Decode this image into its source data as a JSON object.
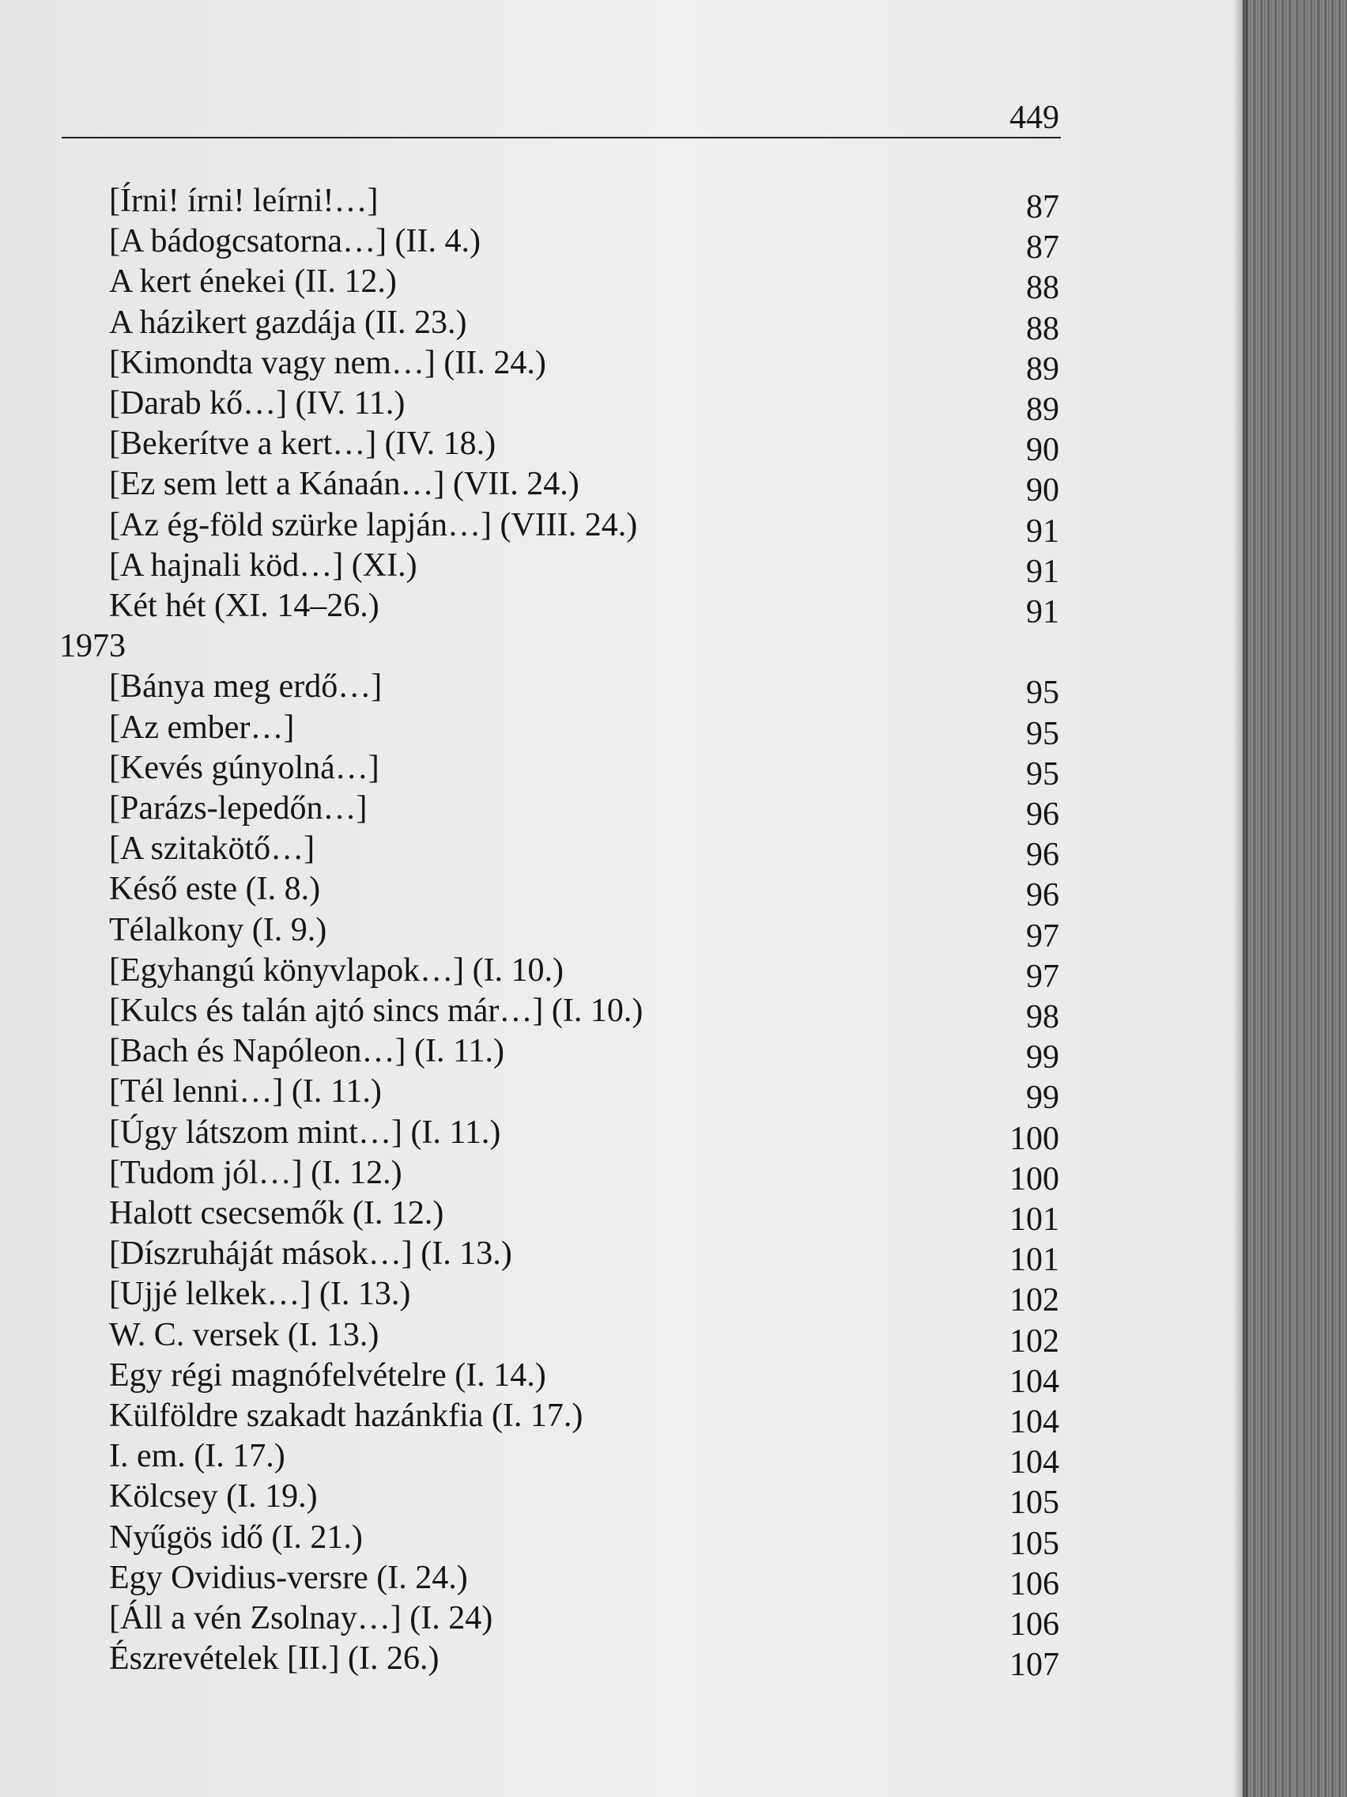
{
  "page_number": "449",
  "entries": [
    {
      "title": "[Írni! írni! leírni!…]",
      "page": "87"
    },
    {
      "title": "[A bádogcsatorna…] (II. 4.)",
      "page": "87"
    },
    {
      "title": "A kert énekei (II. 12.)",
      "page": "88"
    },
    {
      "title": "A házikert gazdája (II. 23.)",
      "page": "88"
    },
    {
      "title": "[Kimondta vagy nem…] (II. 24.)",
      "page": "89"
    },
    {
      "title": "[Darab kő…] (IV. 11.)",
      "page": "89"
    },
    {
      "title": "[Bekerítve a kert…] (IV. 18.)",
      "page": "90"
    },
    {
      "title": "[Ez sem lett a Kánaán…] (VII. 24.)",
      "page": "90"
    },
    {
      "title": "[Az ég-föld szürke lapján…] (VIII. 24.)",
      "page": "91"
    },
    {
      "title": "[A hajnali köd…] (XI.)",
      "page": "91"
    },
    {
      "title": "Két hét (XI. 14–26.)",
      "page": "91"
    }
  ],
  "sections": [
    {
      "heading": "1973",
      "entries": [
        {
          "title": "[Bánya meg erdő…]",
          "page": "95"
        },
        {
          "title": "[Az ember…]",
          "page": "95"
        },
        {
          "title": "[Kevés gúnyolná…]",
          "page": "95"
        },
        {
          "title": "[Parázs-lepedőn…]",
          "page": "96"
        },
        {
          "title": "[A szitakötő…]",
          "page": "96"
        },
        {
          "title": "Késő este (I. 8.)",
          "page": "96"
        },
        {
          "title": "Télalkony (I. 9.)",
          "page": "97"
        },
        {
          "title": "[Egyhangú könyvlapok…] (I. 10.)",
          "page": "97"
        },
        {
          "title": "[Kulcs és talán ajtó sincs már…] (I. 10.)",
          "page": "98"
        },
        {
          "title": "[Bach és Napóleon…] (I. 11.)",
          "page": "99"
        },
        {
          "title": "[Tél lenni…] (I. 11.)",
          "page": "99"
        },
        {
          "title": "[Úgy látszom mint…] (I. 11.)",
          "page": "100"
        },
        {
          "title": "[Tudom jól…] (I. 12.)",
          "page": "100"
        },
        {
          "title": "Halott csecsemők (I. 12.)",
          "page": "101"
        },
        {
          "title": "[Díszruháját mások…] (I. 13.)",
          "page": "101"
        },
        {
          "title": "[Ujjé lelkek…] (I. 13.)",
          "page": "102"
        },
        {
          "title": "W. C. versek (I. 13.)",
          "page": "102"
        },
        {
          "title": "Egy régi magnófelvételre (I. 14.)",
          "page": "104"
        },
        {
          "title": "Külföldre szakadt hazánkfia (I. 17.)",
          "page": "104"
        },
        {
          "title": "I. em. (I. 17.)",
          "page": "104"
        },
        {
          "title": "Kölcsey (I. 19.)",
          "page": "105"
        },
        {
          "title": "Nyűgös idő (I. 21.)",
          "page": "105"
        },
        {
          "title": "Egy Ovidius-versre (I. 24.)",
          "page": "106"
        },
        {
          "title": "[Áll a vén Zsolnay…] (I. 24)",
          "page": "106"
        },
        {
          "title": "Észrevételek [II.] (I. 26.)",
          "page": "107"
        }
      ]
    }
  ]
}
